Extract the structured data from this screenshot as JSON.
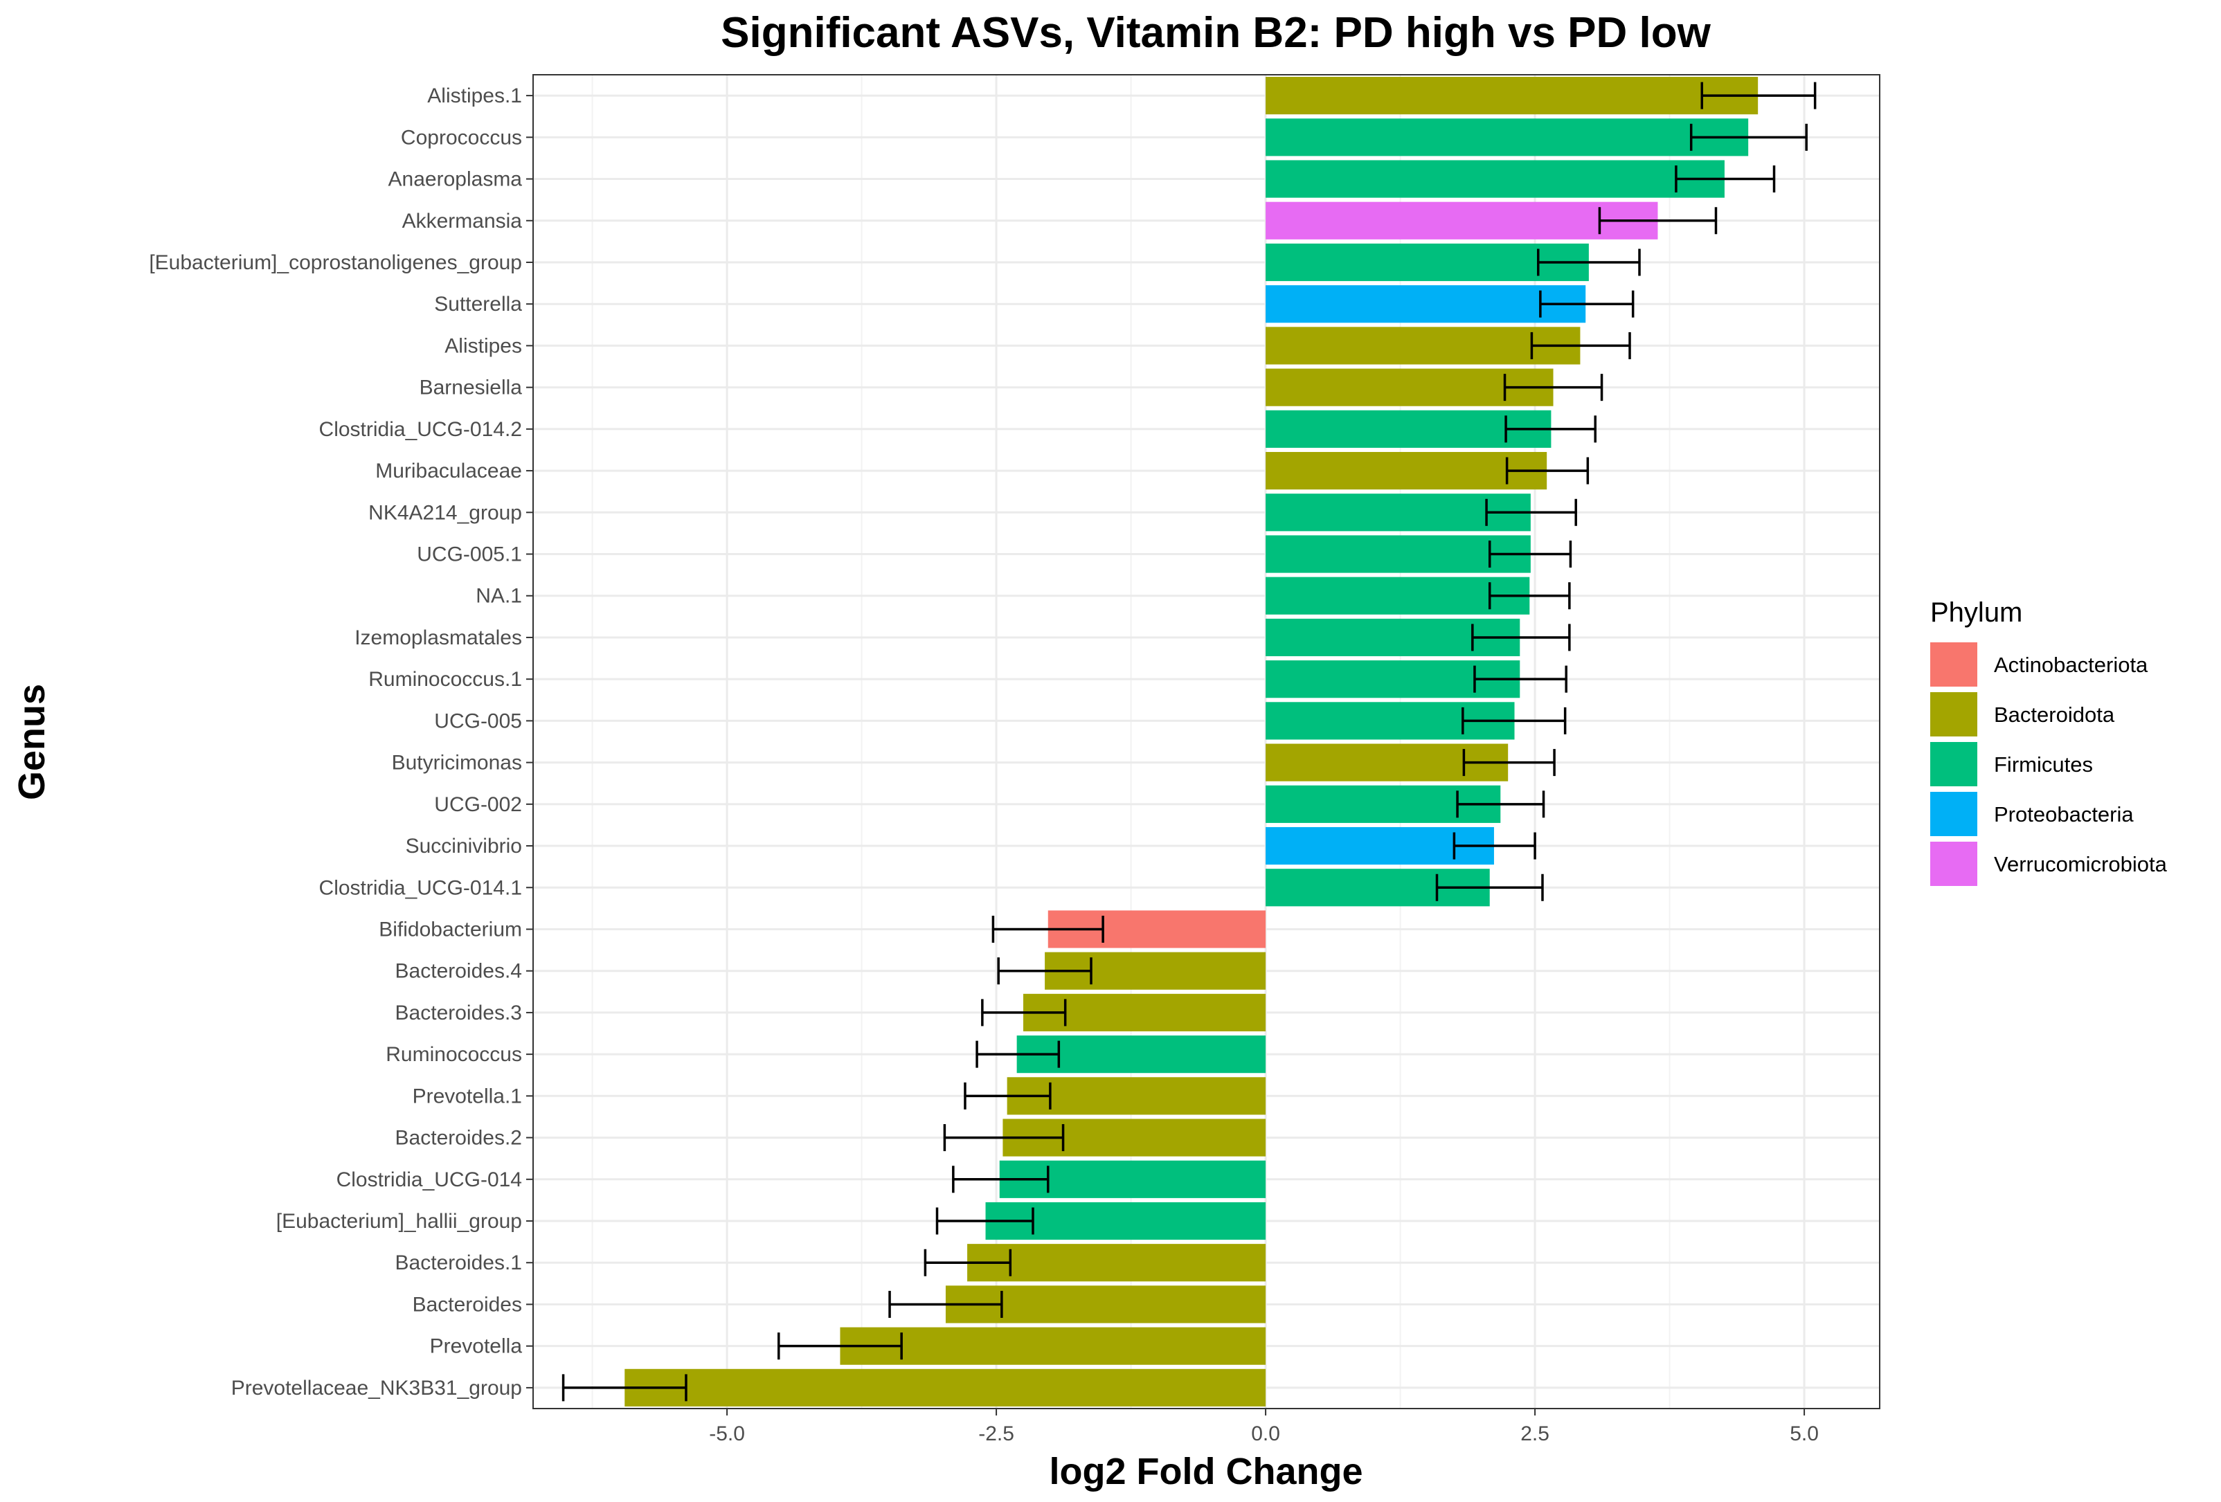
{
  "chart_data": {
    "type": "bar",
    "orientation": "horizontal",
    "title": "Significant ASVs, Vitamin B2: PD high vs PD low",
    "xlabel": "log2 Fold Change",
    "ylabel": "Genus",
    "xlim": [
      -6.8,
      5.7
    ],
    "x_ticks": [
      -5,
      -2.5,
      0,
      2.5,
      5
    ],
    "x_tick_labels": [
      "-5.0",
      "-2.5",
      "0.0",
      "2.5",
      "5.0"
    ],
    "grid": true,
    "legend": {
      "title": "Phylum",
      "position": "right",
      "entries": [
        {
          "name": "Actinobacteriota",
          "color": "#F8766D"
        },
        {
          "name": "Bacteroidota",
          "color": "#A3A500"
        },
        {
          "name": "Firmicutes",
          "color": "#00BF7D"
        },
        {
          "name": "Proteobacteria",
          "color": "#00B0F6"
        },
        {
          "name": "Verrucomicrobiota",
          "color": "#E76BF3"
        }
      ]
    },
    "categories": [
      "Alistipes.1",
      "Coprococcus",
      "Anaeroplasma",
      "Akkermansia",
      "[Eubacterium]_coprostanoligenes_group",
      "Sutterella",
      "Alistipes",
      "Barnesiella",
      "Clostridia_UCG-014.2",
      "Muribaculaceae",
      "NK4A214_group",
      "UCG-005.1",
      "NA.1",
      "Izemoplasmatales",
      "Ruminococcus.1",
      "UCG-005",
      "Butyricimonas",
      "UCG-002",
      "Succinivibrio",
      "Clostridia_UCG-014.1",
      "Bifidobacterium",
      "Bacteroides.4",
      "Bacteroides.3",
      "Ruminococcus",
      "Prevotella.1",
      "Bacteroides.2",
      "Clostridia_UCG-014",
      "[Eubacterium]_hallii_group",
      "Bacteroides.1",
      "Bacteroides",
      "Prevotella",
      "Prevotellaceae_NK3B31_group"
    ],
    "values": [
      4.57,
      4.48,
      4.26,
      3.64,
      3.0,
      2.97,
      2.92,
      2.67,
      2.65,
      2.61,
      2.46,
      2.46,
      2.45,
      2.36,
      2.36,
      2.31,
      2.25,
      2.18,
      2.12,
      2.08,
      -2.02,
      -2.05,
      -2.25,
      -2.31,
      -2.4,
      -2.44,
      -2.47,
      -2.6,
      -2.77,
      -2.97,
      -3.95,
      -5.95
    ],
    "error_low": [
      4.05,
      3.95,
      3.81,
      3.1,
      2.53,
      2.55,
      2.47,
      2.22,
      2.23,
      2.24,
      2.05,
      2.08,
      2.08,
      1.92,
      1.94,
      1.83,
      1.84,
      1.78,
      1.75,
      1.59,
      -2.53,
      -2.48,
      -2.63,
      -2.68,
      -2.79,
      -2.98,
      -2.9,
      -3.05,
      -3.16,
      -3.49,
      -4.52,
      -6.52
    ],
    "error_high": [
      5.1,
      5.02,
      4.72,
      4.18,
      3.47,
      3.41,
      3.38,
      3.12,
      3.06,
      2.99,
      2.88,
      2.83,
      2.82,
      2.82,
      2.79,
      2.78,
      2.68,
      2.58,
      2.5,
      2.57,
      -1.51,
      -1.62,
      -1.86,
      -1.92,
      -2.0,
      -1.88,
      -2.02,
      -2.16,
      -2.37,
      -2.45,
      -3.38,
      -5.38
    ],
    "phylum": [
      "Bacteroidota",
      "Firmicutes",
      "Firmicutes",
      "Verrucomicrobiota",
      "Firmicutes",
      "Proteobacteria",
      "Bacteroidota",
      "Bacteroidota",
      "Firmicutes",
      "Bacteroidota",
      "Firmicutes",
      "Firmicutes",
      "Firmicutes",
      "Firmicutes",
      "Firmicutes",
      "Firmicutes",
      "Bacteroidota",
      "Firmicutes",
      "Proteobacteria",
      "Firmicutes",
      "Actinobacteriota",
      "Bacteroidota",
      "Bacteroidota",
      "Firmicutes",
      "Bacteroidota",
      "Bacteroidota",
      "Firmicutes",
      "Firmicutes",
      "Bacteroidota",
      "Bacteroidota",
      "Bacteroidota",
      "Bacteroidota"
    ]
  }
}
